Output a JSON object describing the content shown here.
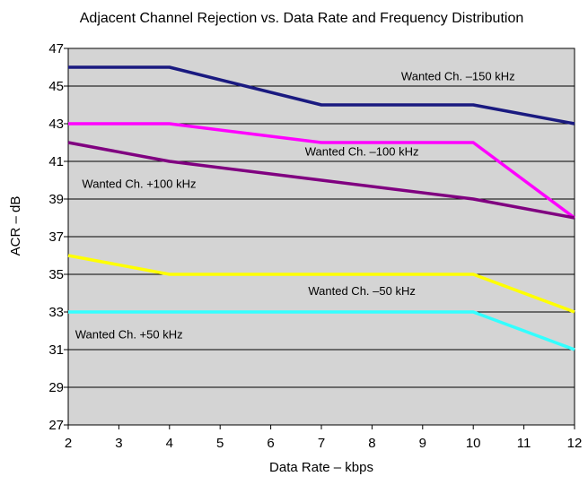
{
  "chart_data": {
    "type": "line",
    "title": "Adjacent Channel Rejection vs. Data Rate and  Frequency Distribution",
    "xlabel": "Data Rate – kbps",
    "ylabel": "ACR – dB",
    "xlim": [
      2,
      12
    ],
    "ylim": [
      27,
      47
    ],
    "x_ticks": [
      "2",
      "3",
      "4",
      "5",
      "6",
      "7",
      "8",
      "9",
      "10",
      "11",
      "12"
    ],
    "y_ticks": [
      "27",
      "29",
      "31",
      "33",
      "35",
      "37",
      "39",
      "41",
      "43",
      "45",
      "47"
    ],
    "grid": "horizontal",
    "plot_background": "#d4d4d4",
    "series": [
      {
        "name": "Wanted Ch. –150 kHz",
        "color": "#1a1a80",
        "x": [
          2,
          4,
          7,
          10,
          12
        ],
        "y": [
          46,
          46,
          44,
          44,
          43
        ],
        "label_at": [
          9.7,
          45.3
        ]
      },
      {
        "name": "Wanted Ch. –100 kHz",
        "color": "#ff00ff",
        "x": [
          2,
          4,
          7,
          10,
          12
        ],
        "y": [
          43,
          43,
          42,
          42,
          38
        ],
        "label_at": [
          7.8,
          41.3
        ]
      },
      {
        "name": "Wanted Ch. +100 kHz",
        "color": "#800080",
        "x": [
          2,
          4,
          7,
          10,
          12
        ],
        "y": [
          42,
          41,
          40,
          39,
          38
        ],
        "label_at": [
          3.4,
          39.6
        ]
      },
      {
        "name": "Wanted Ch. –50 kHz",
        "color": "#ffff00",
        "x": [
          2,
          4,
          7,
          10,
          12
        ],
        "y": [
          36,
          35,
          35,
          35,
          33
        ],
        "label_at": [
          7.8,
          33.9
        ]
      },
      {
        "name": "Wanted Ch. +50 kHz",
        "color": "#33ffff",
        "x": [
          2,
          4,
          7,
          10,
          12
        ],
        "y": [
          33,
          33,
          33,
          33,
          31
        ],
        "label_at": [
          3.2,
          31.6
        ]
      }
    ]
  }
}
